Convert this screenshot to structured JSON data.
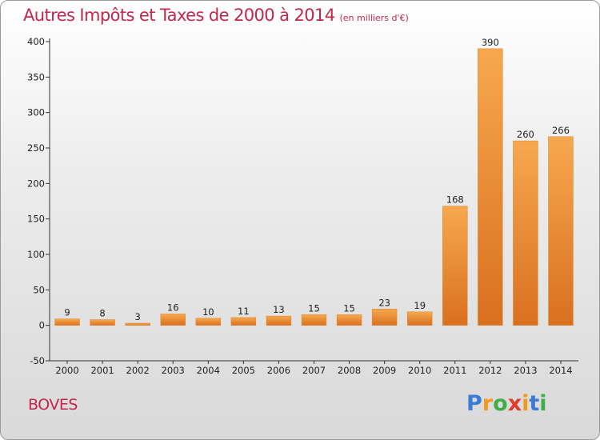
{
  "header": {
    "title": "Autres Impôts et Taxes de 2000 à 2014",
    "subtitle": "(en milliers d'€)"
  },
  "footer": {
    "commune": "BOVES",
    "logo_letters": [
      "P",
      "r",
      "o",
      "x",
      "i",
      "t",
      "i"
    ],
    "logo_colors": [
      "#3a7bd5",
      "#f39a1d",
      "#3fae49",
      "#e23b2e",
      "#f39a1d",
      "#3a7bd5",
      "#3fae49"
    ]
  },
  "chart_data": {
    "type": "bar",
    "title": "Autres Impôts et Taxes de 2000 à 2014",
    "subtitle": "(en milliers d'€)",
    "categories": [
      "2000",
      "2001",
      "2002",
      "2003",
      "2004",
      "2005",
      "2006",
      "2007",
      "2008",
      "2009",
      "2010",
      "2011",
      "2012",
      "2013",
      "2014"
    ],
    "values": [
      9,
      8,
      3,
      16,
      10,
      11,
      13,
      15,
      15,
      23,
      19,
      168,
      390,
      260,
      266
    ],
    "value_labels": [
      "9",
      "8",
      "3",
      "16",
      "10",
      "11",
      "13",
      "15",
      "15",
      "23",
      "19",
      "168",
      "390",
      "260",
      "266"
    ],
    "ylim": [
      -50,
      400
    ],
    "yticks": [
      -50,
      0,
      50,
      100,
      150,
      200,
      250,
      300,
      350,
      400
    ],
    "ytick_labels": [
      "-50",
      "0",
      "50",
      "100",
      "150",
      "200",
      "250",
      "300",
      "350",
      "400"
    ],
    "grid": false,
    "bar_color_light": "#f7a84e",
    "bar_color_dark": "#d9701f"
  }
}
